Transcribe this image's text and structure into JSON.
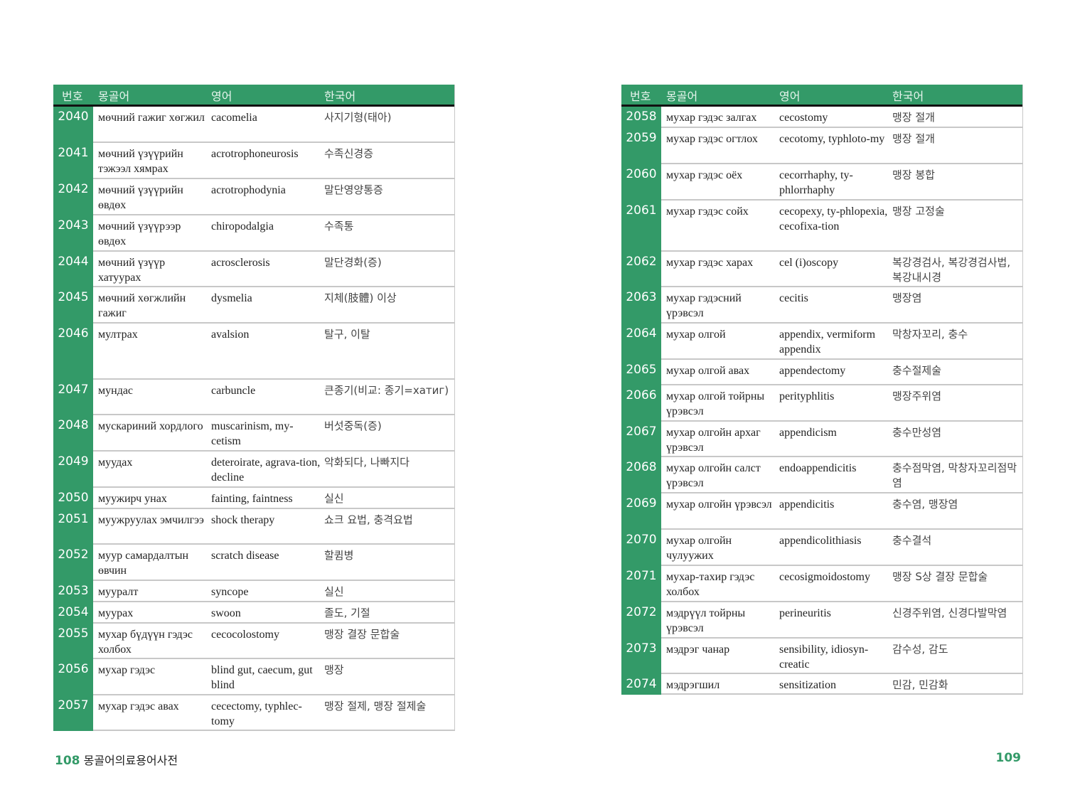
{
  "headers": {
    "number": "번호",
    "mongolian": "몽골어",
    "english": "영어",
    "korean": "한국어"
  },
  "left_page": {
    "page_number": "108",
    "book_title": "몽골어의료용어사전",
    "rows": [
      {
        "no": "2040",
        "mn": "мөчний гажиг хөгжил",
        "en": "cacomelia",
        "ko": "사지기형(태아)"
      },
      {
        "no": "2041",
        "mn": "мөчний үзүүрийн тэжээл хямрах",
        "en": "acrotrophoneurosis",
        "ko": "수족신경증"
      },
      {
        "no": "2042",
        "mn": "мөчний үзүүрийн өвдөх",
        "en": "acrotrophodynia",
        "ko": "말단영양통증"
      },
      {
        "no": "2043",
        "mn": "мөчний үзүүрээр өвдөх",
        "en": "chiropodalgia",
        "ko": "수족통"
      },
      {
        "no": "2044",
        "mn": "мөчний үзүүр хатуурах",
        "en": "acrosclerosis",
        "ko": "말단경화(증)"
      },
      {
        "no": "2045",
        "mn": "мөчний хөгжлийн гажиг",
        "en": "dysmelia",
        "ko": "지체(肢體) 이상"
      },
      {
        "no": "2046",
        "mn": "мултрах",
        "en": "avalsion",
        "ko": "탈구, 이탈"
      },
      {
        "no": "2047",
        "mn": "мундас",
        "en": "carbuncle",
        "ko": "큰종기(비교: 종기=хатиг)"
      },
      {
        "no": "2048",
        "mn": "мускариний хордлого",
        "en": "muscarinism, my-cetism",
        "ko": "버섯중독(증)"
      },
      {
        "no": "2049",
        "mn": "муудах",
        "en": "deteroirate, agrava-tion, decline",
        "ko": "악화되다, 나빠지다"
      },
      {
        "no": "2050",
        "mn": "муужирч унах",
        "en": "fainting, faintness",
        "ko": "실신"
      },
      {
        "no": "2051",
        "mn": "муужруулах эмчилгээ",
        "en": "shock therapy",
        "ko": "쇼크 요법, 충격요법"
      },
      {
        "no": "2052",
        "mn": "муур самардалтын өвчин",
        "en": "scratch disease",
        "ko": "할큄병"
      },
      {
        "no": "2053",
        "mn": "мууралт",
        "en": "syncope",
        "ko": "실신"
      },
      {
        "no": "2054",
        "mn": "муурах",
        "en": "swoon",
        "ko": "졸도, 기절"
      },
      {
        "no": "2055",
        "mn": "мухар бүдүүн гэдэс холбох",
        "en": "cecocolostomy",
        "ko": "맹장 결장 문합술"
      },
      {
        "no": "2056",
        "mn": "мухар гэдэс",
        "en": "blind gut, caecum, gut blind",
        "ko": "맹장"
      },
      {
        "no": "2057",
        "mn": "мухар гэдэс авах",
        "en": "cecectomy, typhlec-tomy",
        "ko": "맹장 절제, 맹장 절제술"
      }
    ]
  },
  "right_page": {
    "page_number": "109",
    "rows": [
      {
        "no": "2058",
        "mn": "мухар гэдэс залгах",
        "en": "cecostomy",
        "ko": "맹장 절개"
      },
      {
        "no": "2059",
        "mn": "мухар гэдэс огтлох",
        "en": "cecotomy, typhloto-my",
        "ko": "맹장 절개"
      },
      {
        "no": "2060",
        "mn": "мухар гэдэс оёх",
        "en": "cecorrhaphy, ty-phlorrhaphy",
        "ko": "맹장 봉합"
      },
      {
        "no": "2061",
        "mn": "мухар гэдэс сойх",
        "en": "cecopexy, ty-phlopexia, cecofixa-tion",
        "ko": "맹장 고정술"
      },
      {
        "no": "2062",
        "mn": "мухар гэдэс харах",
        "en": "cel (i)oscopy",
        "ko": "복강경검사, 복강경검사법, 복강내시경"
      },
      {
        "no": "2063",
        "mn": "мухар гэдэсний үрэвсэл",
        "en": "cecitis",
        "ko": "맹장염"
      },
      {
        "no": "2064",
        "mn": "мухар олгой",
        "en": "appendix, vermiform appendix",
        "ko": "막창자꼬리, 충수"
      },
      {
        "no": "2065",
        "mn": "мухар олгой авах",
        "en": "appendectomy",
        "ko": "충수절제술"
      },
      {
        "no": "2066",
        "mn": "мухар олгой тойрны үрэвсэл",
        "en": "perityphlitis",
        "ko": "맹장주위염"
      },
      {
        "no": "2067",
        "mn": "мухар олгойн архаг үрэвсэл",
        "en": "appendicism",
        "ko": "충수만성염"
      },
      {
        "no": "2068",
        "mn": "мухар олгойн салст үрэвсэл",
        "en": "endoappendicitis",
        "ko": "충수점막염, 막창자꼬리점막염"
      },
      {
        "no": "2069",
        "mn": "мухар олгойн үрэвсэл",
        "en": "appendicitis",
        "ko": "충수염, 맹장염"
      },
      {
        "no": "2070",
        "mn": "мухар олгойн чулуужих",
        "en": "appendicolithiasis",
        "ko": "충수결석"
      },
      {
        "no": "2071",
        "mn": "мухар-тахир гэдэс холбох",
        "en": "cecosigmoidostomy",
        "ko": "맹장 S상 결장 문합술"
      },
      {
        "no": "2072",
        "mn": "мэдрүүл тойрны үрэвсэл",
        "en": "perineuritis",
        "ko": "신경주위염, 신경다발막염"
      },
      {
        "no": "2073",
        "mn": "мэдрэг чанар",
        "en": "sensibility, idiosyn-creatic",
        "ko": "감수성, 감도"
      },
      {
        "no": "2074",
        "mn": "мэдрэгшил",
        "en": "sensitization",
        "ko": "민감, 민감화"
      }
    ]
  },
  "colors": {
    "accent": "#339a68",
    "rule": "#c8c8c8"
  }
}
